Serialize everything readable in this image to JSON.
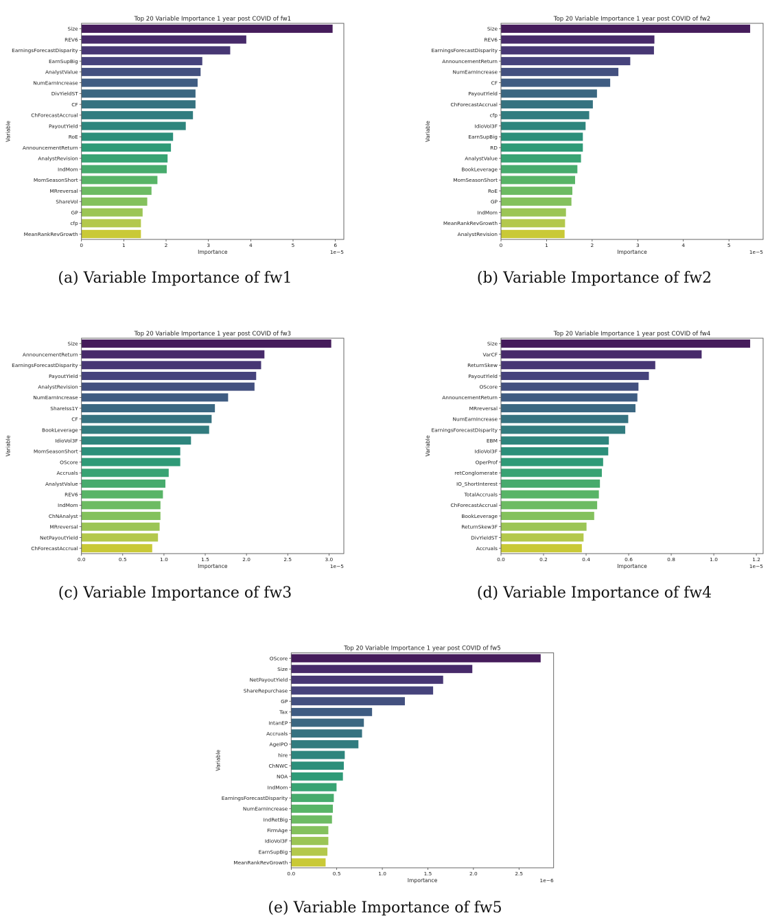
{
  "figure": {
    "captions": [
      "(a) Variable Importance of fw1",
      "(b) Variable Importance of fw2",
      "(c) Variable Importance of fw3",
      "(d) Variable Importance of fw4",
      "(e) Variable Importance of fw5"
    ]
  },
  "chart_data": [
    {
      "type": "bar",
      "orientation": "horizontal",
      "title": "Top 20 Variable Importance 1 year post COVID of fw1",
      "xlabel": "Importance",
      "ylabel": "Variable",
      "x_scale_label": "1e−5",
      "xlim": [
        0,
        6.2
      ],
      "xticks": [
        0,
        1,
        2,
        3,
        4,
        5,
        6
      ],
      "xtick_labels": [
        "0",
        "1",
        "2",
        "3",
        "4",
        "5",
        "6"
      ],
      "grid": false,
      "palette": "viridis",
      "categories": [
        "Size",
        "REV6",
        "EarningsForecastDisparity",
        "EarnSupBig",
        "AnalystValue",
        "NumEarnIncrease",
        "DivYieldST",
        "CF",
        "ChForecastAccrual",
        "PayoutYield",
        "RoE",
        "AnnouncementReturn",
        "AnalystRevision",
        "IndMom",
        "MomSeasonShort",
        "MRreversal",
        "ShareVol",
        "GP",
        "cfp",
        "MeanRankRevGrowth"
      ],
      "values": [
        5.94,
        3.9,
        3.52,
        2.86,
        2.82,
        2.75,
        2.7,
        2.7,
        2.64,
        2.47,
        2.17,
        2.12,
        2.04,
        2.02,
        1.8,
        1.66,
        1.56,
        1.45,
        1.41,
        1.41
      ]
    },
    {
      "type": "bar",
      "orientation": "horizontal",
      "title": "Top 20 Variable Importance 1 year post COVID of fw2",
      "xlabel": "Importance",
      "ylabel": "Variable",
      "x_scale_label": "1e−5",
      "xlim": [
        0,
        5.75
      ],
      "xticks": [
        0,
        1,
        2,
        3,
        4,
        5
      ],
      "xtick_labels": [
        "0",
        "1",
        "2",
        "3",
        "4",
        "5"
      ],
      "grid": false,
      "palette": "viridis",
      "categories": [
        "Size",
        "REV6",
        "EarningsForecastDisparity",
        "AnnouncementReturn",
        "NumEarnIncrease",
        "CF",
        "PayoutYield",
        "ChForecastAccrual",
        "cfp",
        "IdioVol3F",
        "EarnSupBig",
        "RD",
        "AnalystValue",
        "BookLeverage",
        "MomSeasonShort",
        "RoE",
        "GP",
        "IndMom",
        "MeanRankRevGrowth",
        "AnalystRevision"
      ],
      "values": [
        5.47,
        3.37,
        3.36,
        2.84,
        2.58,
        2.4,
        2.11,
        2.02,
        1.94,
        1.86,
        1.8,
        1.8,
        1.76,
        1.68,
        1.63,
        1.57,
        1.55,
        1.43,
        1.41,
        1.4
      ]
    },
    {
      "type": "bar",
      "orientation": "horizontal",
      "title": "Top 20 Variable Importance 1 year post COVID of fw3",
      "xlabel": "Importance",
      "ylabel": "Variable",
      "x_scale_label": "1e−5",
      "xlim": [
        0,
        3.18
      ],
      "xticks": [
        0,
        0.5,
        1,
        1.5,
        2,
        2.5,
        3
      ],
      "xtick_labels": [
        "0.0",
        "0.5",
        "1.0",
        "1.5",
        "2.0",
        "2.5",
        "3.0"
      ],
      "grid": false,
      "palette": "viridis",
      "categories": [
        "Size",
        "AnnouncementReturn",
        "EarningsForecastDisparity",
        "PayoutYield",
        "AnalystRevision",
        "NumEarnIncrease",
        "ShareIss1Y",
        "CF",
        "BookLeverage",
        "IdioVol3F",
        "MomSeasonShort",
        "OScore",
        "Accruals",
        "AnalystValue",
        "REV6",
        "IndMom",
        "ChNAnalyst",
        "MRreversal",
        "NetPayoutYield",
        "ChForecastAccrual"
      ],
      "values": [
        3.03,
        2.22,
        2.18,
        2.12,
        2.1,
        1.78,
        1.62,
        1.58,
        1.55,
        1.33,
        1.2,
        1.2,
        1.06,
        1.02,
        0.99,
        0.96,
        0.96,
        0.95,
        0.93,
        0.86
      ]
    },
    {
      "type": "bar",
      "orientation": "horizontal",
      "title": "Top 20 Variable Importance 1 year post COVID of fw4",
      "xlabel": "Importance",
      "ylabel": "Variable",
      "x_scale_label": "1e−5",
      "xlim": [
        0,
        1.232
      ],
      "xticks": [
        0,
        0.2,
        0.4,
        0.6,
        0.8,
        1.0,
        1.2
      ],
      "xtick_labels": [
        "0.0",
        "0.2",
        "0.4",
        "0.6",
        "0.8",
        "1.0",
        "1.2"
      ],
      "grid": false,
      "palette": "viridis",
      "categories": [
        "Size",
        "VarCF",
        "ReturnSkew",
        "PayoutYield",
        "OScore",
        "AnnouncementReturn",
        "MRreversal",
        "NumEarnIncrease",
        "EarningsForecastDisparity",
        "EBM",
        "IdioVol3F",
        "OperProf",
        "retConglomerate",
        "IO_ShortInterest",
        "TotalAccruals",
        "ChForecastAccrual",
        "BookLeverage",
        "ReturnSkew3F",
        "DivYieldST",
        "Accruals"
      ],
      "values": [
        1.172,
        0.944,
        0.726,
        0.696,
        0.647,
        0.642,
        0.633,
        0.599,
        0.585,
        0.508,
        0.505,
        0.481,
        0.475,
        0.466,
        0.461,
        0.453,
        0.439,
        0.403,
        0.389,
        0.381
      ]
    },
    {
      "type": "bar",
      "orientation": "horizontal",
      "title": "Top 20 Variable Importance 1 year post COVID of fw5",
      "xlabel": "Importance",
      "ylabel": "Variable",
      "x_scale_label": "1e−6",
      "xlim": [
        0,
        2.88
      ],
      "xticks": [
        0,
        0.5,
        1,
        1.5,
        2,
        2.5
      ],
      "xtick_labels": [
        "0.0",
        "0.5",
        "1.0",
        "1.5",
        "2.0",
        "2.5"
      ],
      "grid": false,
      "palette": "viridis",
      "categories": [
        "OScore",
        "Size",
        "NetPayoutYield",
        "ShareRepurchase",
        "GP",
        "Tax",
        "IntanEP",
        "Accruals",
        "AgeIPO",
        "hire",
        "ChNWC",
        "NOA",
        "IndMom",
        "EarningsForecastDisparity",
        "NumEarnIncrease",
        "IndRetBig",
        "FirmAge",
        "IdioVol3F",
        "EarnSupBig",
        "MeanRankRevGrowth"
      ],
      "values": [
        2.74,
        1.99,
        1.67,
        1.56,
        1.25,
        0.89,
        0.8,
        0.78,
        0.74,
        0.59,
        0.58,
        0.57,
        0.5,
        0.47,
        0.46,
        0.45,
        0.41,
        0.41,
        0.4,
        0.38
      ]
    }
  ]
}
